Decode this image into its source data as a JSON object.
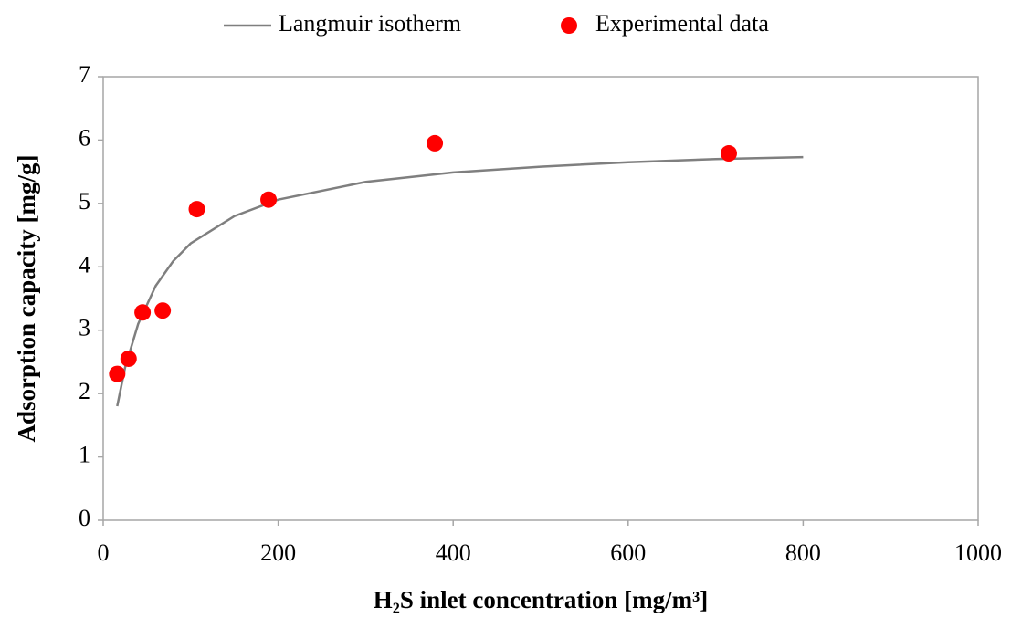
{
  "chart_data": {
    "type": "scatter",
    "x_label": "H₂S inlet concentration [mg/m³]",
    "y_label": "Adsorption capacity [mg/g]",
    "xlim": [
      0,
      1000
    ],
    "xticks": [
      0,
      200,
      400,
      600,
      800,
      1000
    ],
    "ylim": [
      0,
      7
    ],
    "yticks": [
      0,
      1,
      2,
      3,
      4,
      5,
      6,
      7
    ],
    "grid": false,
    "legend": "top",
    "series": [
      {
        "name": "Langmuir isotherm",
        "type": "line",
        "color": "#7f7f7f",
        "x": [
          16,
          25,
          40,
          60,
          80,
          100,
          150,
          200,
          300,
          400,
          500,
          600,
          700,
          800
        ],
        "values": [
          1.8,
          2.41,
          3.1,
          3.7,
          4.09,
          4.37,
          4.8,
          5.06,
          5.34,
          5.49,
          5.58,
          5.65,
          5.7,
          5.73
        ]
      },
      {
        "name": "Experimental data",
        "type": "scatter",
        "color": "#ff0000",
        "x": [
          16,
          29,
          45,
          68,
          107,
          189,
          379,
          715
        ],
        "values": [
          2.31,
          2.55,
          3.28,
          3.31,
          4.91,
          5.06,
          5.95,
          5.79
        ]
      }
    ]
  }
}
